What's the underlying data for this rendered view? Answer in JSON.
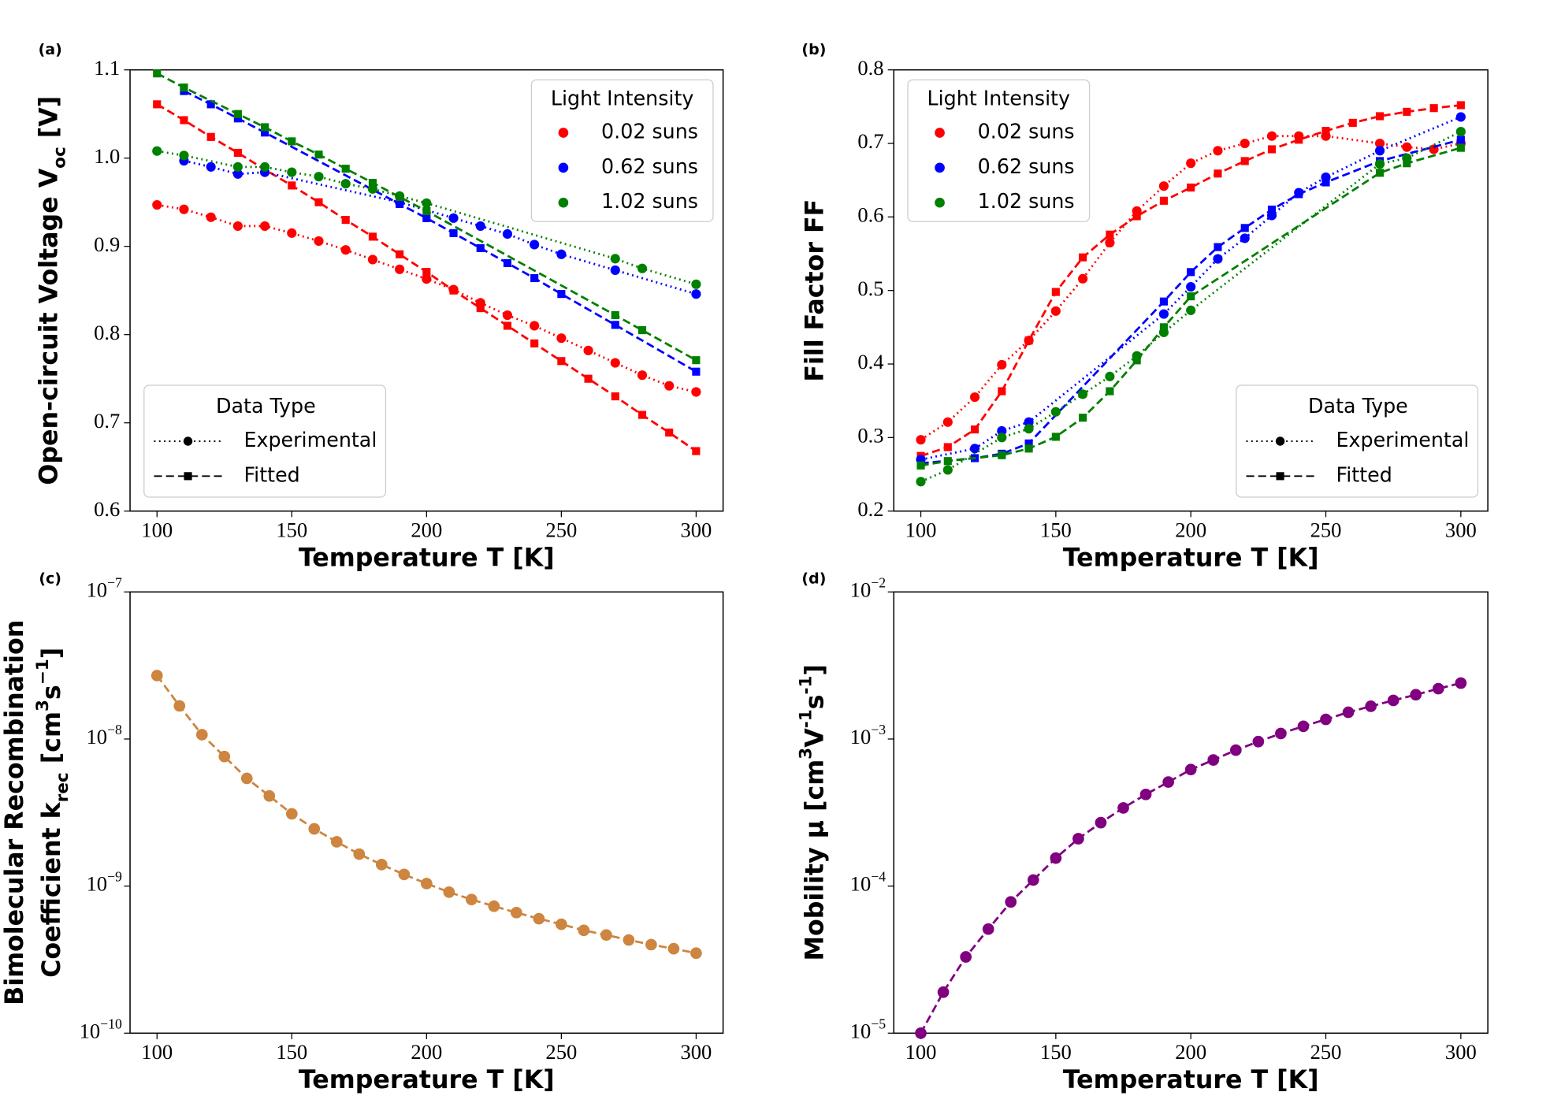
{
  "chart_data": [
    {
      "type": "line",
      "panel_label": "(a)",
      "xlabel": "Temperature T [K]",
      "ylabel": [
        [
          {
            "text": "Open-circuit Voltage V"
          },
          {
            "text": "oc",
            "shift": "sub"
          },
          {
            "text": " [V]"
          }
        ]
      ],
      "xlim": [
        90,
        310
      ],
      "xticks": [
        100,
        150,
        200,
        250,
        300
      ],
      "ylim": [
        0.6,
        1.1
      ],
      "yticks": [
        0.6,
        0.7,
        0.8,
        0.9,
        {
          "value": 1,
          "label": "1.0"
        },
        1.1
      ],
      "legend_title": "Light Intensity",
      "legend_loc": "upper right",
      "style_legend_title": "Data Type",
      "style_legend_loc": "lower left",
      "data_types": [
        "Experimental",
        "Fitted"
      ],
      "groups": [
        {
          "name": "0.02 suns",
          "color": "#ff0000",
          "experimental": {
            "x": [
              100,
              110,
              120,
              130,
              140,
              150,
              160,
              170,
              180,
              190,
              200,
              210,
              220,
              230,
              240,
              250,
              260,
              270,
              280,
              290,
              300
            ],
            "values": [
              0.947,
              0.942,
              0.933,
              0.923,
              0.923,
              0.915,
              0.906,
              0.896,
              0.885,
              0.874,
              0.863,
              0.851,
              0.836,
              0.822,
              0.81,
              0.796,
              0.782,
              0.768,
              0.754,
              0.742,
              0.735
            ]
          },
          "fitted": {
            "x": [
              100,
              110,
              120,
              130,
              140,
              150,
              160,
              170,
              180,
              190,
              200,
              210,
              220,
              230,
              240,
              250,
              260,
              270,
              280,
              290,
              300
            ],
            "values": [
              1.061,
              1.043,
              1.024,
              1.006,
              0.987,
              0.969,
              0.95,
              0.93,
              0.911,
              0.891,
              0.871,
              0.85,
              0.83,
              0.81,
              0.79,
              0.77,
              0.75,
              0.73,
              0.709,
              0.689,
              0.668
            ]
          }
        },
        {
          "name": "0.62 suns",
          "color": "#0000ff",
          "experimental": {
            "x": [
              110,
              120,
              130,
              140,
              190,
              210,
              220,
              230,
              240,
              250,
              270,
              300
            ],
            "values": [
              0.997,
              0.99,
              0.982,
              0.984,
              0.95,
              0.932,
              0.923,
              0.914,
              0.902,
              0.891,
              0.873,
              0.846
            ]
          },
          "fitted": {
            "x": [
              110,
              120,
              130,
              140,
              190,
              200,
              210,
              220,
              230,
              240,
              250,
              270,
              300
            ],
            "values": [
              1.076,
              1.061,
              1.045,
              1.029,
              0.948,
              0.932,
              0.915,
              0.898,
              0.881,
              0.864,
              0.846,
              0.811,
              0.758
            ]
          }
        },
        {
          "name": "1.02 suns",
          "color": "#008000",
          "experimental": {
            "x": [
              100,
              110,
              130,
              140,
              150,
              160,
              170,
              180,
              190,
              200,
              270,
              280,
              300
            ],
            "values": [
              1.008,
              1.003,
              0.99,
              0.99,
              0.984,
              0.979,
              0.971,
              0.965,
              0.957,
              0.949,
              0.886,
              0.875,
              0.857
            ]
          },
          "fitted": {
            "x": [
              100,
              110,
              130,
              140,
              150,
              160,
              170,
              180,
              190,
              200,
              270,
              280,
              300
            ],
            "values": [
              1.096,
              1.08,
              1.05,
              1.035,
              1.019,
              1.004,
              0.988,
              0.972,
              0.956,
              0.94,
              0.822,
              0.805,
              0.771
            ]
          }
        }
      ]
    },
    {
      "type": "line",
      "panel_label": "(b)",
      "xlabel": "Temperature T [K]",
      "ylabel": [
        [
          {
            "text": "Fill Factor FF"
          }
        ]
      ],
      "xlim": [
        90,
        310
      ],
      "xticks": [
        100,
        150,
        200,
        250,
        300
      ],
      "ylim": [
        0.2,
        0.8
      ],
      "yticks": [
        0.2,
        0.3,
        0.4,
        0.5,
        0.6,
        0.7,
        0.8
      ],
      "legend_title": "Light Intensity",
      "legend_loc": "upper left",
      "style_legend_title": "Data Type",
      "style_legend_loc": "lower right",
      "data_types": [
        "Experimental",
        "Fitted"
      ],
      "groups": [
        {
          "name": "0.02 suns",
          "color": "#ff0000",
          "experimental": {
            "x": [
              100,
              110,
              120,
              130,
              140,
              150,
              160,
              170,
              180,
              190,
              200,
              210,
              220,
              230,
              240,
              250,
              270,
              280,
              290,
              300
            ],
            "values": [
              0.297,
              0.321,
              0.355,
              0.399,
              0.432,
              0.472,
              0.516,
              0.565,
              0.608,
              0.642,
              0.673,
              0.69,
              0.7,
              0.71,
              0.71,
              0.71,
              0.7,
              0.695,
              0.692,
              0.7
            ]
          },
          "fitted": {
            "x": [
              100,
              110,
              120,
              130,
              140,
              150,
              160,
              170,
              180,
              190,
              200,
              210,
              220,
              230,
              240,
              250,
              260,
              270,
              280,
              290,
              300
            ],
            "values": [
              0.275,
              0.287,
              0.311,
              0.363,
              0.432,
              0.498,
              0.545,
              0.576,
              0.601,
              0.622,
              0.64,
              0.659,
              0.676,
              0.692,
              0.705,
              0.717,
              0.728,
              0.737,
              0.743,
              0.748,
              0.752
            ]
          }
        },
        {
          "name": "0.62 suns",
          "color": "#0000ff",
          "experimental": {
            "x": [
              100,
              120,
              130,
              140,
              190,
              200,
              210,
              220,
              230,
              240,
              250,
              270,
              300
            ],
            "values": [
              0.27,
              0.285,
              0.309,
              0.321,
              0.468,
              0.505,
              0.543,
              0.571,
              0.602,
              0.633,
              0.654,
              0.69,
              0.736
            ]
          },
          "fitted": {
            "x": [
              100,
              120,
              130,
              140,
              190,
              200,
              210,
              220,
              230,
              240,
              250,
              270,
              300
            ],
            "values": [
              0.265,
              0.272,
              0.278,
              0.292,
              0.485,
              0.525,
              0.559,
              0.585,
              0.61,
              0.631,
              0.647,
              0.676,
              0.705
            ]
          }
        },
        {
          "name": "1.02 suns",
          "color": "#008000",
          "experimental": {
            "x": [
              100,
              110,
              130,
              140,
              150,
              160,
              170,
              180,
              190,
              200,
              270,
              280,
              300
            ],
            "values": [
              0.24,
              0.256,
              0.3,
              0.312,
              0.335,
              0.359,
              0.383,
              0.411,
              0.443,
              0.473,
              0.672,
              0.68,
              0.716
            ]
          },
          "fitted": {
            "x": [
              100,
              110,
              130,
              140,
              150,
              160,
              170,
              180,
              190,
              200,
              270,
              280,
              300
            ],
            "values": [
              0.262,
              0.268,
              0.276,
              0.285,
              0.301,
              0.327,
              0.363,
              0.405,
              0.45,
              0.492,
              0.66,
              0.673,
              0.694
            ]
          }
        }
      ]
    },
    {
      "type": "logline",
      "panel_label": "(c)",
      "xlabel": "Temperature T [K]",
      "ylabel": [
        [
          {
            "text": "Bimolecular Recombination"
          }
        ],
        [
          {
            "text": "Coefficient k"
          },
          {
            "text": "rec",
            "shift": "sub"
          },
          {
            "text": " [cm"
          },
          {
            "text": "3",
            "shift": "super"
          },
          {
            "text": "s"
          },
          {
            "text": "−1",
            "shift": "super"
          },
          {
            "text": "]"
          }
        ]
      ],
      "xlim": [
        90,
        310
      ],
      "xticks": [
        100,
        150,
        200,
        250,
        300
      ],
      "log_y": true,
      "ylim": [
        1e-10,
        1e-07
      ],
      "yticks": [
        {
          "value": 1e-10,
          "label": "10",
          "exponent": "−10"
        },
        {
          "value": 1e-09,
          "label": "10",
          "exponent": "−9"
        },
        {
          "value": 1e-08,
          "label": "10",
          "exponent": "−8"
        },
        {
          "value": 1e-07,
          "label": "10",
          "exponent": "−7"
        }
      ],
      "color": "#cd853f",
      "x": [
        100,
        108.33,
        116.67,
        125,
        133.33,
        141.67,
        150,
        158.33,
        166.67,
        175,
        183.33,
        191.67,
        200,
        208.33,
        216.67,
        225,
        233.33,
        241.67,
        250,
        258.33,
        266.67,
        275,
        283.33,
        291.67,
        300
      ],
      "values": [
        2.7e-08,
        1.68e-08,
        1.07e-08,
        7.6e-09,
        5.4e-09,
        4.1e-09,
        3.1e-09,
        2.45e-09,
        2e-09,
        1.65e-09,
        1.4e-09,
        1.2e-09,
        1.04e-09,
        9.1e-10,
        8.1e-10,
        7.3e-10,
        6.6e-10,
        6e-10,
        5.5e-10,
        5e-10,
        4.65e-10,
        4.3e-10,
        4e-10,
        3.75e-10,
        3.5e-10
      ]
    },
    {
      "type": "logline",
      "panel_label": "(d)",
      "xlabel": "Temperature T [K]",
      "ylabel": [
        [
          {
            "text": "Mobility μ [cm"
          },
          {
            "text": "3",
            "shift": "super"
          },
          {
            "text": "V"
          },
          {
            "text": "-1",
            "shift": "super"
          },
          {
            "text": "s"
          },
          {
            "text": "-1",
            "shift": "super"
          },
          {
            "text": "]"
          }
        ]
      ],
      "xlim": [
        90,
        310
      ],
      "xticks": [
        100,
        150,
        200,
        250,
        300
      ],
      "log_y": true,
      "ylim": [
        1e-05,
        0.01
      ],
      "yticks": [
        {
          "value": 1e-05,
          "label": "10",
          "exponent": "−5"
        },
        {
          "value": 0.0001,
          "label": "10",
          "exponent": "−4"
        },
        {
          "value": 0.001,
          "label": "10",
          "exponent": "−3"
        },
        {
          "value": 0.01,
          "label": "10",
          "exponent": "−2"
        }
      ],
      "color": "#800080",
      "x": [
        100,
        108.33,
        116.67,
        125,
        133.33,
        141.67,
        150,
        158.33,
        166.67,
        175,
        183.33,
        191.67,
        200,
        208.33,
        216.67,
        225,
        233.33,
        241.67,
        250,
        258.33,
        266.67,
        275,
        283.33,
        291.67,
        300
      ],
      "values": [
        1e-05,
        1.9e-05,
        3.3e-05,
        5.1e-05,
        7.8e-05,
        0.00011,
        0.000155,
        0.00021,
        0.00027,
        0.00034,
        0.00042,
        0.00051,
        0.00062,
        0.00072,
        0.00084,
        0.00096,
        0.00109,
        0.00122,
        0.00136,
        0.00152,
        0.00167,
        0.00183,
        0.002,
        0.0022,
        0.0024
      ]
    }
  ]
}
